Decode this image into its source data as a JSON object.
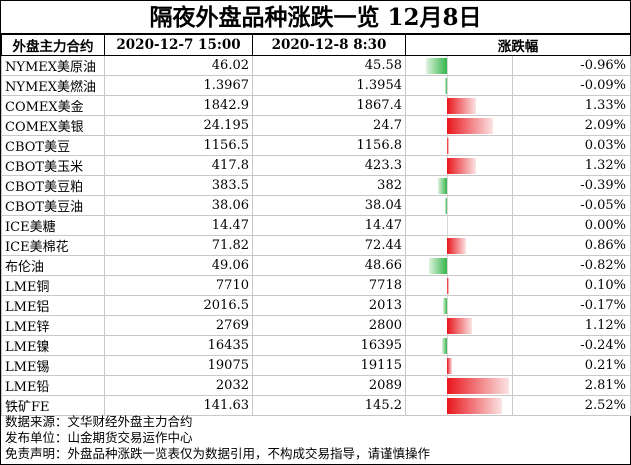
{
  "title": "隔夜外盘品种涨跌一览 12月8日",
  "columns": [
    "外盘主力合约",
    "2020-12-7 15:00",
    "2020-12-8 8:30",
    "涨跌幅"
  ],
  "colors": {
    "up": "#e8161c",
    "down": "#36b54a"
  },
  "rows": [
    {
      "name": "NYMEX美原油",
      "prev": "46.02",
      "curr": "45.58",
      "change": -0.96,
      "change_text": "-0.96%"
    },
    {
      "name": "NYMEX美燃油",
      "prev": "1.3967",
      "curr": "1.3954",
      "change": -0.09,
      "change_text": "-0.09%"
    },
    {
      "name": "COMEX美金",
      "prev": "1842.9",
      "curr": "1867.4",
      "change": 1.33,
      "change_text": "1.33%"
    },
    {
      "name": "COMEX美银",
      "prev": "24.195",
      "curr": "24.7",
      "change": 2.09,
      "change_text": "2.09%"
    },
    {
      "name": "CBOT美豆",
      "prev": "1156.5",
      "curr": "1156.8",
      "change": 0.03,
      "change_text": "0.03%"
    },
    {
      "name": "CBOT美玉米",
      "prev": "417.8",
      "curr": "423.3",
      "change": 1.32,
      "change_text": "1.32%"
    },
    {
      "name": "CBOT美豆粕",
      "prev": "383.5",
      "curr": "382",
      "change": -0.39,
      "change_text": "-0.39%"
    },
    {
      "name": "CBOT美豆油",
      "prev": "38.06",
      "curr": "38.04",
      "change": -0.05,
      "change_text": "-0.05%"
    },
    {
      "name": "ICE美糖",
      "prev": "14.47",
      "curr": "14.47",
      "change": 0.0,
      "change_text": "0.00%"
    },
    {
      "name": "ICE美棉花",
      "prev": "71.82",
      "curr": "72.44",
      "change": 0.86,
      "change_text": "0.86%"
    },
    {
      "name": "布伦油",
      "prev": "49.06",
      "curr": "48.66",
      "change": -0.82,
      "change_text": "-0.82%"
    },
    {
      "name": "LME铜",
      "prev": "7710",
      "curr": "7718",
      "change": 0.1,
      "change_text": "0.10%"
    },
    {
      "name": "LME铝",
      "prev": "2016.5",
      "curr": "2013",
      "change": -0.17,
      "change_text": "-0.17%"
    },
    {
      "name": "LME锌",
      "prev": "2769",
      "curr": "2800",
      "change": 1.12,
      "change_text": "1.12%"
    },
    {
      "name": "LME镍",
      "prev": "16435",
      "curr": "16395",
      "change": -0.24,
      "change_text": "-0.24%"
    },
    {
      "name": "LME锡",
      "prev": "19075",
      "curr": "19115",
      "change": 0.21,
      "change_text": "0.21%"
    },
    {
      "name": "LME铅",
      "prev": "2032",
      "curr": "2089",
      "change": 2.81,
      "change_text": "2.81%"
    },
    {
      "name": "铁矿FE",
      "prev": "141.63",
      "curr": "145.2",
      "change": 2.52,
      "change_text": "2.52%"
    }
  ],
  "notes": [
    "数据来源：文华财经外盘主力合约",
    "发布单位：山金期货交易运作中心",
    "免责声明：外盘品种涨跌一览表仅为数据引用，不构成交易指导，请谨慎操作"
  ]
}
